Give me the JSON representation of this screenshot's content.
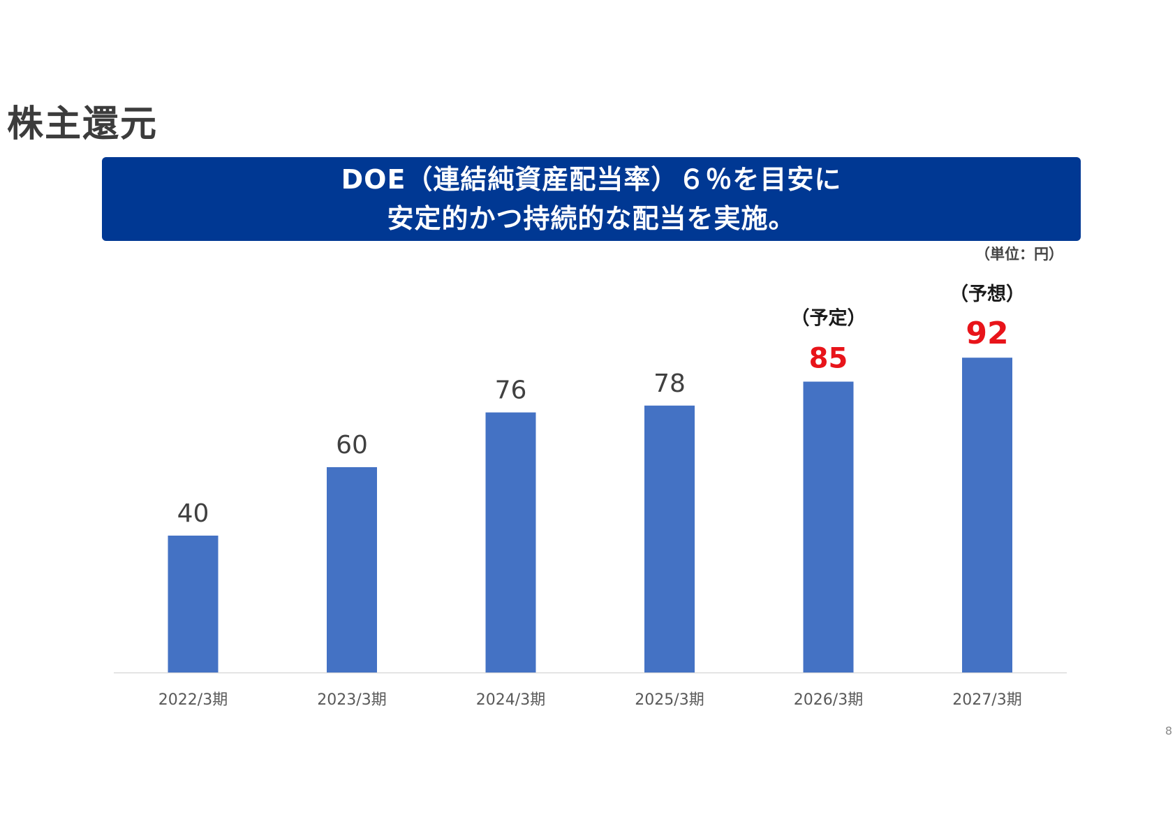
{
  "slide": {
    "title": "株主還元",
    "banner_line1": "DOE（連結純資産配当率）６％を目安に",
    "banner_line2": "安定的かつ持続的な配当を実施。",
    "unit": "（単位：円）",
    "page_number": "8"
  },
  "colors": {
    "banner": "#003893",
    "bar": "#4472C4",
    "highlight": "#E8141A"
  },
  "chart_data": {
    "type": "bar",
    "categories": [
      "2022/3期",
      "2023/3期",
      "2024/3期",
      "2025/3期",
      "2026/3期",
      "2027/3期"
    ],
    "values": [
      40,
      60,
      76,
      78,
      85,
      92
    ],
    "status_labels": [
      "",
      "",
      "",
      "",
      "（予定）",
      "（予想）"
    ],
    "highlighted": [
      false,
      false,
      false,
      false,
      true,
      true
    ],
    "ylim": [
      0,
      100
    ],
    "grid": false,
    "legend": "none"
  }
}
